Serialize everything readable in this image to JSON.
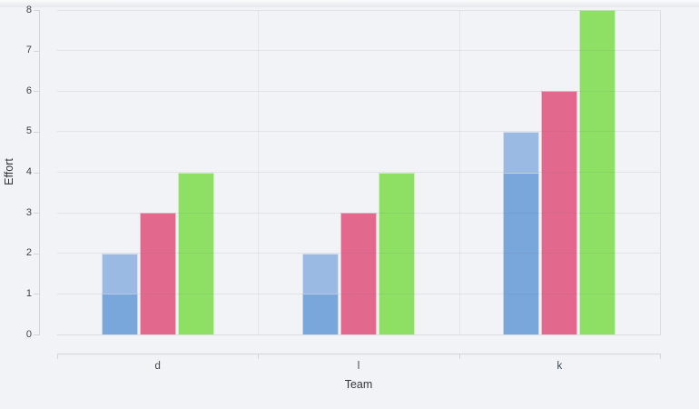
{
  "page": {
    "background": "#f2f3f6"
  },
  "chart_data": {
    "type": "bar",
    "title": "",
    "categories": [
      "d",
      "l",
      "k"
    ],
    "series": [
      {
        "name": "blue-light",
        "color": "#9bbae3",
        "slot": 0,
        "values": [
          2,
          2,
          5
        ]
      },
      {
        "name": "blue-dark-overlay",
        "color": "#79a7db",
        "slot": 0,
        "overlay_of": "blue-light",
        "values": [
          1,
          1,
          4
        ]
      },
      {
        "name": "pink",
        "color": "#e2698d",
        "slot": 1,
        "values": [
          3,
          3,
          6
        ]
      },
      {
        "name": "green",
        "color": "#8de063",
        "slot": 2,
        "values": [
          4,
          4,
          8
        ]
      }
    ],
    "xlabel": "Team",
    "ylabel": "Effort",
    "ylim": [
      0,
      8
    ],
    "yticks": [
      0,
      1,
      2,
      3,
      4,
      5,
      6,
      7,
      8
    ],
    "grid": true,
    "legend_position": "none",
    "colors": {
      "gridline": "rgba(109,118,135,0.12)",
      "axis_line": "#d2d5da",
      "frame_line": "#d9dce1",
      "tick_text": "#3b4148",
      "category_text": "#3d4654"
    }
  }
}
